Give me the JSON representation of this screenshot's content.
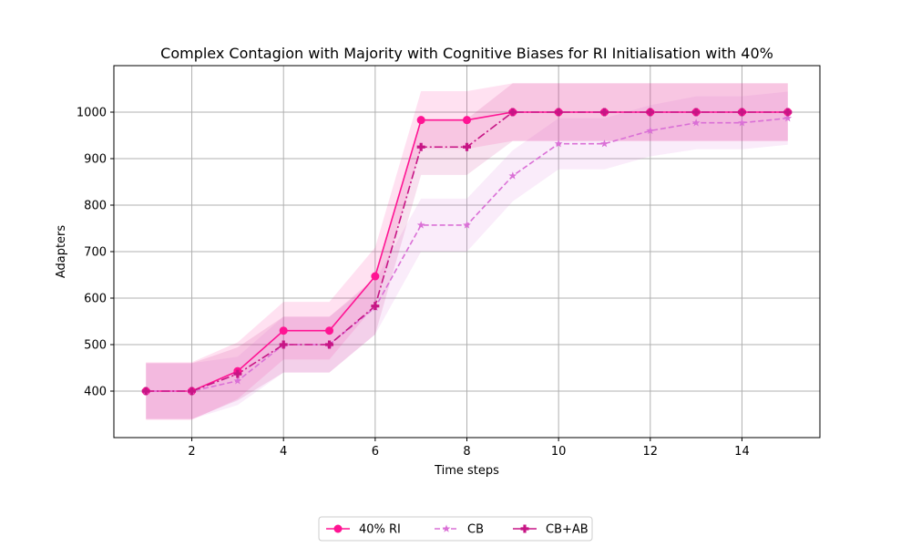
{
  "chart_data": {
    "type": "line",
    "title": "Complex Contagion with Majority with Cognitive Biases for RI Initialisation with 40%",
    "xlabel": "Time steps",
    "ylabel": "Adapters",
    "xlim": [
      0.3,
      15.7
    ],
    "ylim": [
      300,
      1100
    ],
    "x_ticks": [
      2,
      4,
      6,
      8,
      10,
      12,
      14
    ],
    "y_ticks": [
      400,
      500,
      600,
      700,
      800,
      900,
      1000
    ],
    "grid": true,
    "legend_position": "bottom-center",
    "x": [
      1,
      2,
      3,
      4,
      5,
      6,
      7,
      8,
      9,
      10,
      11,
      12,
      13,
      14,
      15
    ],
    "series": [
      {
        "name": "40% RI",
        "color": "#ff1493",
        "line_style": "solid",
        "marker": "circle",
        "values": [
          400,
          400,
          443,
          530,
          530,
          647,
          983,
          983,
          1000,
          1000,
          1000,
          1000,
          1000,
          1000,
          1000
        ],
        "band_lower": [
          338,
          338,
          383,
          468,
          468,
          585,
          921,
          921,
          938,
          938,
          938,
          938,
          938,
          938,
          938
        ],
        "band_upper": [
          462,
          462,
          505,
          592,
          592,
          709,
          1045,
          1045,
          1062,
          1062,
          1062,
          1062,
          1062,
          1062,
          1062
        ]
      },
      {
        "name": "CB",
        "color": "#da70d6",
        "line_style": "dashed",
        "marker": "star",
        "values": [
          400,
          400,
          422,
          500,
          500,
          580,
          757,
          757,
          863,
          932,
          932,
          960,
          977,
          977,
          987
        ],
        "band_lower": [
          340,
          340,
          370,
          440,
          440,
          522,
          700,
          700,
          808,
          877,
          877,
          905,
          920,
          920,
          930
        ],
        "band_upper": [
          460,
          460,
          474,
          560,
          560,
          638,
          814,
          814,
          918,
          987,
          987,
          1015,
          1034,
          1034,
          1044
        ]
      },
      {
        "name": "CB+AB",
        "color": "#c71585",
        "line_style": "dashdot",
        "marker": "plus",
        "values": [
          400,
          400,
          437,
          500,
          500,
          583,
          925,
          925,
          1000,
          1000,
          1000,
          1000,
          1000,
          1000,
          1000
        ],
        "band_lower": [
          340,
          340,
          380,
          440,
          440,
          522,
          865,
          865,
          938,
          938,
          938,
          938,
          938,
          938,
          938
        ],
        "band_upper": [
          460,
          460,
          494,
          560,
          560,
          644,
          985,
          985,
          1062,
          1062,
          1062,
          1062,
          1062,
          1062,
          1062
        ]
      }
    ]
  }
}
